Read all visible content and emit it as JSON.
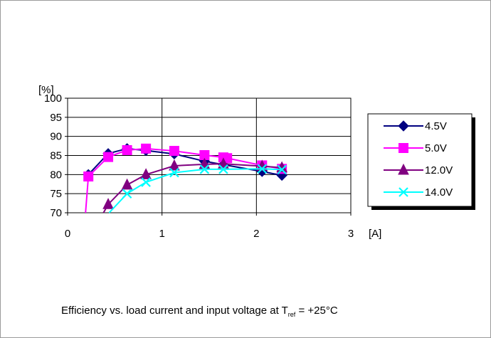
{
  "chart_data": {
    "type": "line",
    "xlabel": "[A]",
    "ylabel": "[%]",
    "xlim": [
      0,
      3
    ],
    "ylim": [
      70,
      100
    ],
    "xticks": [
      "0",
      "1",
      "2",
      "3"
    ],
    "yticks": [
      "70",
      "75",
      "80",
      "85",
      "90",
      "95",
      "100"
    ],
    "grid": true,
    "legend_position": "right",
    "series": [
      {
        "name": "4.5V",
        "color": "#000080",
        "marker": "diamond",
        "x": [
          0.22,
          0.43,
          0.63,
          0.83,
          1.13,
          1.45,
          1.65,
          2.06,
          2.27
        ],
        "y": [
          80.0,
          85.5,
          86.8,
          86.3,
          85.4,
          83.5,
          82.6,
          80.8,
          79.8
        ]
      },
      {
        "name": "5.0V",
        "color": "#ff00ff",
        "marker": "square",
        "x": [
          0.19,
          0.22,
          0.43,
          0.63,
          0.83,
          1.13,
          1.45,
          1.65,
          1.69,
          2.06,
          2.27
        ],
        "y": [
          70.0,
          79.5,
          84.6,
          86.4,
          86.8,
          86.2,
          85.1,
          84.5,
          84.3,
          82.4,
          81.5
        ]
      },
      {
        "name": "12.0V",
        "color": "#800080",
        "marker": "triangle",
        "x": [
          0.38,
          0.43,
          0.63,
          0.83,
          1.13,
          1.45,
          1.65,
          2.06,
          2.27
        ],
        "y": [
          70.0,
          72.2,
          77.3,
          80.0,
          82.3,
          82.7,
          82.8,
          82.2,
          81.8
        ]
      },
      {
        "name": "14.0V",
        "color": "#00ffff",
        "marker": "x",
        "x": [
          0.44,
          0.63,
          0.83,
          1.13,
          1.45,
          1.65,
          2.06,
          2.27
        ],
        "y": [
          70.0,
          75.0,
          78.0,
          80.5,
          81.4,
          81.4,
          81.5,
          81.3
        ]
      }
    ]
  },
  "caption": {
    "text_before": "Efficiency vs. load current and input voltage at T",
    "subscript": "ref",
    "text_after": " = +25°C"
  }
}
